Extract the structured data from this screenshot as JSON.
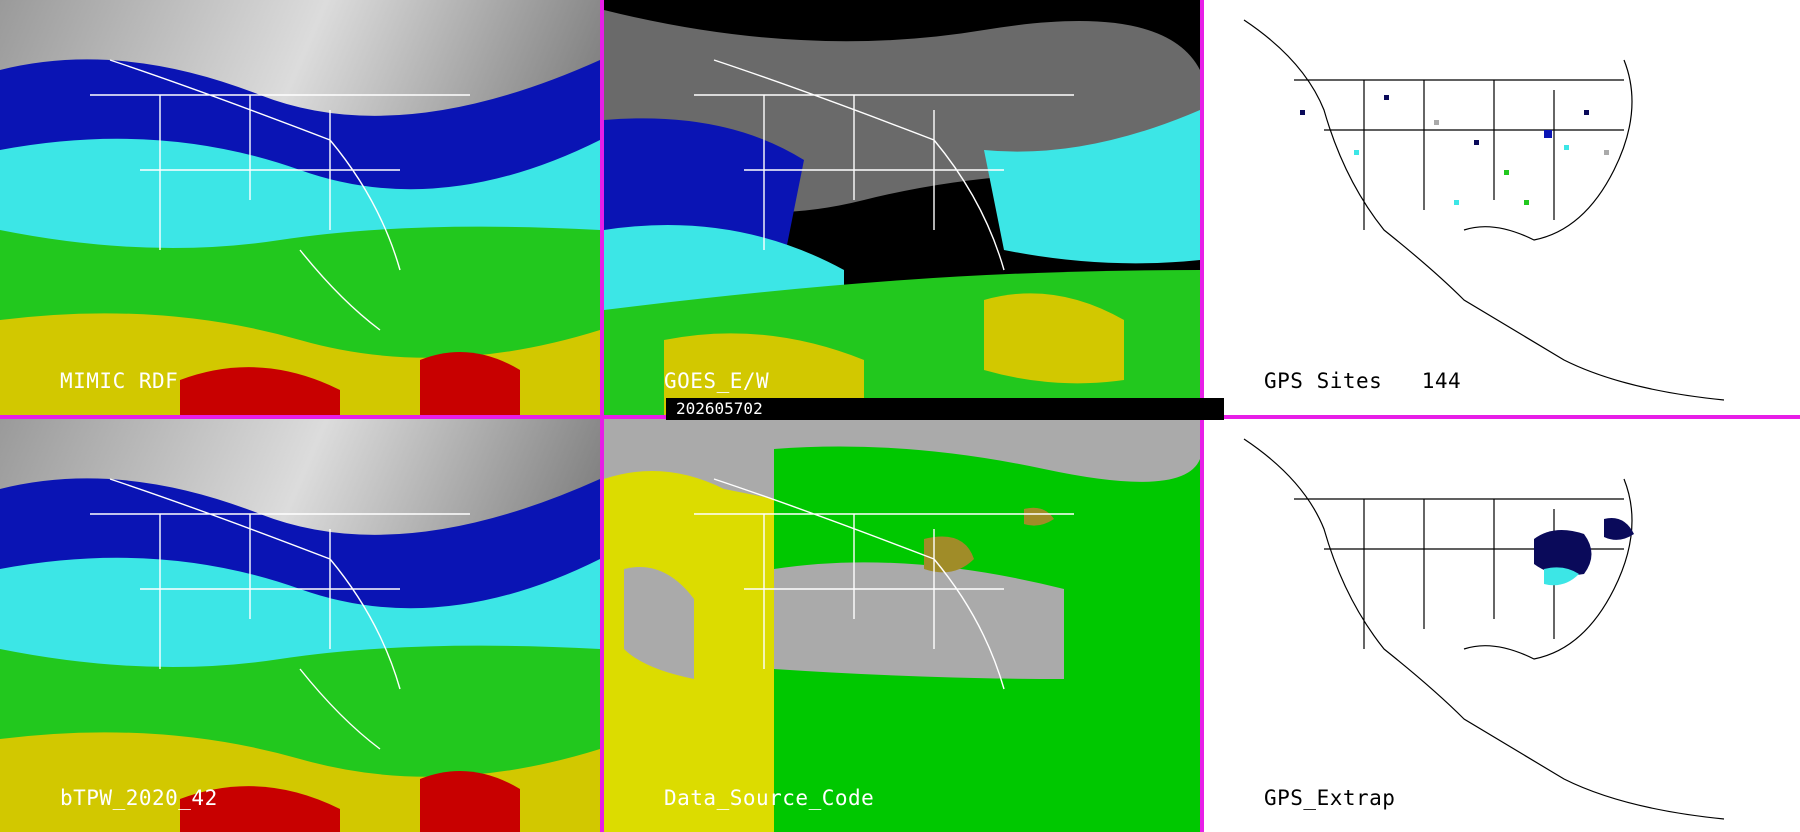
{
  "timestamp": "202605702",
  "colors": {
    "divider": "#e71ee7",
    "precip_red": "#c80000",
    "precip_yellow": "#d2c800",
    "precip_green": "#22c81e",
    "precip_cyan": "#3ce6e6",
    "precip_blue": "#0a14b4",
    "precip_navy": "#0a0a5a",
    "source_yellow": "#dcdc00",
    "source_green": "#00c800",
    "source_gray": "#aaaaaa",
    "source_olive": "#a08c28"
  },
  "panels": {
    "mimic": {
      "label": "MIMIC RDF"
    },
    "goes": {
      "label": "GOES_E/W"
    },
    "gps_sites": {
      "label": "GPS Sites",
      "count": "144"
    },
    "btpw": {
      "label": "bTPW_2020_42"
    },
    "source": {
      "label": "Data_Source_Code"
    },
    "gps_extrap": {
      "label": "GPS_Extrap"
    }
  }
}
